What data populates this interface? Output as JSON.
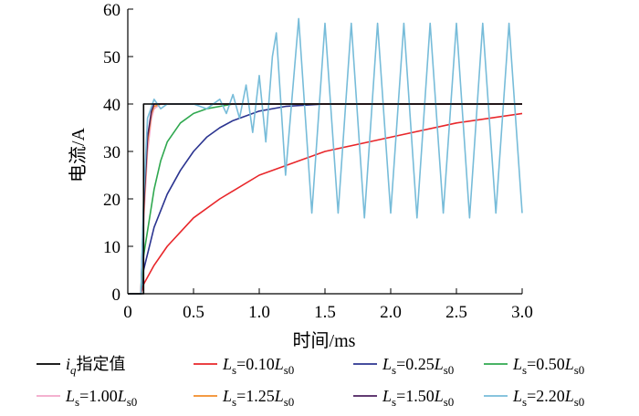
{
  "chart_data": {
    "type": "line",
    "xlabel": "时间/ms",
    "ylabel": "电流/A",
    "xlim": [
      0,
      3.0
    ],
    "ylim": [
      0,
      60
    ],
    "x_ticks": [
      "0",
      "0.5",
      "1.0",
      "1.5",
      "2.0",
      "2.5",
      "3.0"
    ],
    "y_ticks": [
      "0",
      "10",
      "20",
      "30",
      "40",
      "50",
      "60"
    ],
    "grid": false,
    "legend_position": "bottom",
    "series": [
      {
        "name": "i_q指定值",
        "legend": {
          "main": "i",
          "sub": "q",
          "tail": "指定值"
        },
        "color": "#000000",
        "x": [
          0,
          0.1,
          0.1,
          0.12,
          0.12,
          3.0
        ],
        "y": [
          0,
          0,
          0,
          0,
          40,
          40
        ]
      },
      {
        "name": "Ls=0.10Ls0",
        "legend": {
          "pre": "L",
          "sub": "s",
          "mid": "=0.10",
          "post": "L",
          "sub2": "s0"
        },
        "color": "#e8262a",
        "x": [
          0,
          0.1,
          0.12,
          0.2,
          0.3,
          0.5,
          0.7,
          1.0,
          1.3,
          1.5,
          2.0,
          2.5,
          3.0
        ],
        "y": [
          0,
          0,
          2,
          6,
          10,
          16,
          20,
          25,
          28,
          30,
          33,
          36,
          38
        ]
      },
      {
        "name": "Ls=0.25Ls0",
        "legend": {
          "pre": "L",
          "sub": "s",
          "mid": "=0.25",
          "post": "L",
          "sub2": "s0"
        },
        "color": "#2b3490",
        "x": [
          0,
          0.1,
          0.12,
          0.2,
          0.3,
          0.4,
          0.5,
          0.6,
          0.7,
          0.8,
          0.9,
          1.0,
          1.2,
          1.5,
          2.0,
          3.0
        ],
        "y": [
          0,
          0,
          5,
          14,
          21,
          26,
          30,
          33,
          35,
          36.5,
          37.5,
          38.5,
          39.5,
          40,
          40,
          40
        ]
      },
      {
        "name": "Ls=0.50Ls0",
        "legend": {
          "pre": "L",
          "sub": "s",
          "mid": "=0.50",
          "post": "L",
          "sub2": "s0"
        },
        "color": "#2fa84f",
        "x": [
          0,
          0.1,
          0.12,
          0.2,
          0.25,
          0.3,
          0.4,
          0.5,
          0.6,
          0.7,
          0.8,
          3.0
        ],
        "y": [
          0,
          0,
          8,
          22,
          28,
          32,
          36,
          38,
          39,
          39.5,
          40,
          40
        ]
      },
      {
        "name": "Ls=1.00Ls0",
        "legend": {
          "pre": "L",
          "sub": "s",
          "mid": "=1.00",
          "post": "L",
          "sub2": "s0"
        },
        "color": "#f2a6c8",
        "x": [
          0,
          0.1,
          0.12,
          0.15,
          0.18,
          0.2,
          0.25,
          3.0
        ],
        "y": [
          0,
          0,
          15,
          30,
          37,
          39,
          40,
          40
        ]
      },
      {
        "name": "Ls=1.25Ls0",
        "legend": {
          "pre": "L",
          "sub": "s",
          "mid": "=1.25",
          "post": "L",
          "sub2": "s0"
        },
        "color": "#f28c28",
        "x": [
          0,
          0.1,
          0.12,
          0.15,
          0.18,
          0.2,
          0.25,
          3.0
        ],
        "y": [
          0,
          0,
          17,
          32,
          38,
          39.5,
          40,
          40
        ]
      },
      {
        "name": "Ls=1.50Ls0",
        "legend": {
          "pre": "L",
          "sub": "s",
          "mid": "=1.50",
          "post": "L",
          "sub2": "s0"
        },
        "color": "#4b1f5e",
        "x": [
          0,
          0.1,
          0.12,
          0.15,
          0.18,
          0.2,
          0.25,
          3.0
        ],
        "y": [
          0,
          0,
          18,
          33,
          38.5,
          40,
          40,
          40
        ]
      },
      {
        "name": "Ls=2.20Ls0",
        "legend": {
          "pre": "L",
          "sub": "s",
          "mid": "=2.20",
          "post": "L",
          "sub2": "s0"
        },
        "color": "#77bcd9",
        "x": [
          0,
          0.1,
          0.12,
          0.15,
          0.2,
          0.25,
          0.3,
          0.4,
          0.5,
          0.6,
          0.7,
          0.75,
          0.8,
          0.85,
          0.9,
          0.95,
          1.0,
          1.05,
          1.1,
          1.13,
          1.2,
          1.3,
          1.4,
          1.5,
          1.6,
          1.7,
          1.8,
          1.9,
          2.0,
          2.1,
          2.2,
          2.3,
          2.4,
          2.5,
          2.6,
          2.7,
          2.8,
          2.9,
          3.0
        ],
        "y": [
          0,
          0,
          20,
          37,
          41,
          39,
          40,
          40,
          40,
          39,
          41,
          38,
          42,
          37,
          44,
          34,
          46,
          32,
          50,
          55,
          25,
          58,
          17,
          57,
          17,
          57,
          16,
          57,
          17,
          57,
          16,
          57,
          17,
          57,
          16,
          57,
          17,
          57,
          17
        ]
      }
    ]
  }
}
